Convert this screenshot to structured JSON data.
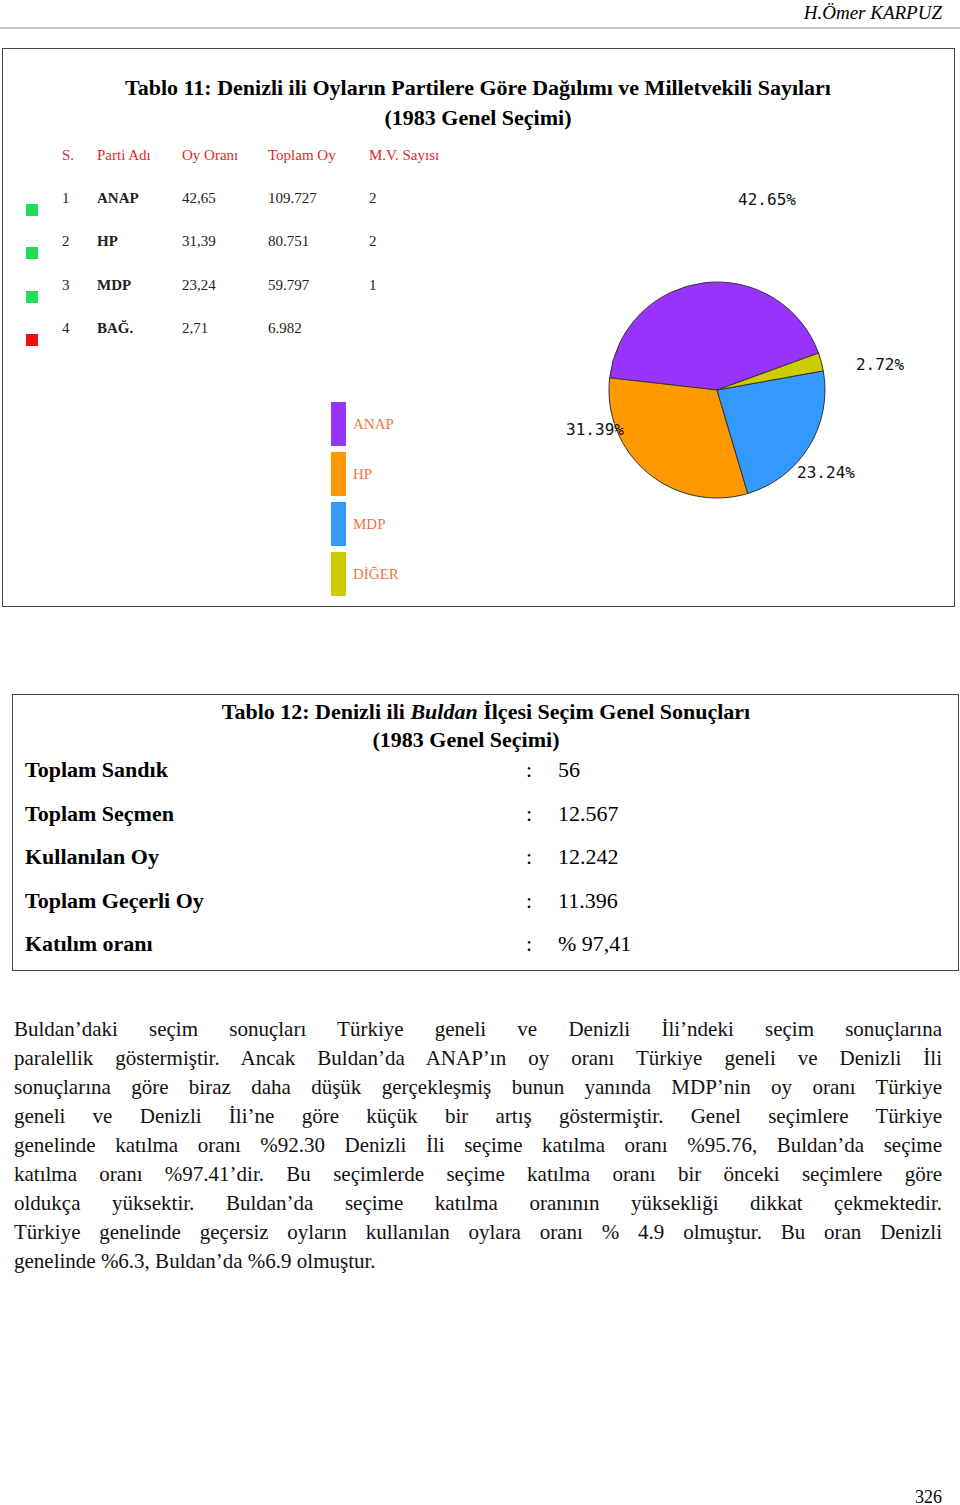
{
  "header": {
    "author": "H.Ömer KARPUZ"
  },
  "table11": {
    "title": "Tablo 11: Denizli ili Oyların Partilere Göre Dağılımı ve Milletvekili Sayıları",
    "subtitle": "(1983 Genel Seçimi)",
    "columns": [
      "S.",
      "Parti Adı",
      "Oy Oranı",
      "Toplam Oy",
      "M.V. Sayısı"
    ],
    "rows": [
      [
        "1",
        "ANAP",
        "42,65",
        "109.727",
        "2"
      ],
      [
        "2",
        "HP",
        "31,39",
        "80.751",
        "2"
      ],
      [
        "3",
        "MDP",
        "23,24",
        "59.797",
        "1"
      ],
      [
        "4",
        "BAĞ.",
        "2,71",
        "6.982"
      ]
    ]
  },
  "chart_data": {
    "type": "pie",
    "categories": [
      "ANAP",
      "HP",
      "MDP",
      "DİĞER"
    ],
    "values": [
      42.65,
      31.39,
      23.24,
      2.72
    ],
    "value_labels": [
      "42.65%",
      "31.39%",
      "23.24%",
      "2.72%"
    ],
    "colors": [
      "#9933ff",
      "#ff9900",
      "#3399ff",
      "#cccc00"
    ],
    "data_labels": true,
    "legend": "left"
  },
  "table12": {
    "title_parts": [
      "Tablo 12: Denizli ili ",
      "Buldan",
      " İlçesi Seçim Genel Sonuçları"
    ],
    "subtitle": "(1983 Genel Seçimi)",
    "separator": ":",
    "rows": [
      [
        "Toplam Sandık",
        "56"
      ],
      [
        "Toplam Seçmen",
        "12.567"
      ],
      [
        "Kullanılan Oy",
        "12.242"
      ],
      [
        "Toplam Geçerli Oy",
        "11.396"
      ],
      [
        "Katılım oranı",
        "% 97,41"
      ]
    ]
  },
  "body": {
    "lines": [
      "Buldan’daki seçim sonuçları Türkiye geneli ve Denizli İli’ndeki seçim sonuçlarına",
      "paralellik göstermiştir. Ancak Buldan’da ANAP’ın oy oranı Türkiye geneli ve Denizli İli",
      "sonuçlarına göre biraz daha düşük gerçekleşmiş bunun yanında MDP’nin oy oranı Türkiye",
      "geneli ve Denizli İli’ne göre küçük bir artış göstermiştir. Genel seçimlere Türkiye",
      "genelinde katılma oranı %92.30 Denizli İli seçime katılma oranı %95.76, Buldan’da seçime",
      "katılma oranı %97.41’dir. Bu seçimlerde seçime katılma oranı bir önceki seçimlere göre",
      "oldukça yüksektir. Buldan’da seçime katılma oranının yüksekliği dikkat çekmektedir.",
      "Türkiye genelinde geçersiz oyların kullanılan oylara oranı % 4.9 olmuştur. Bu oran Denizli",
      "genelinde %6.3, Buldan’da %6.9 olmuştur."
    ]
  },
  "footer": {
    "page": "326"
  }
}
